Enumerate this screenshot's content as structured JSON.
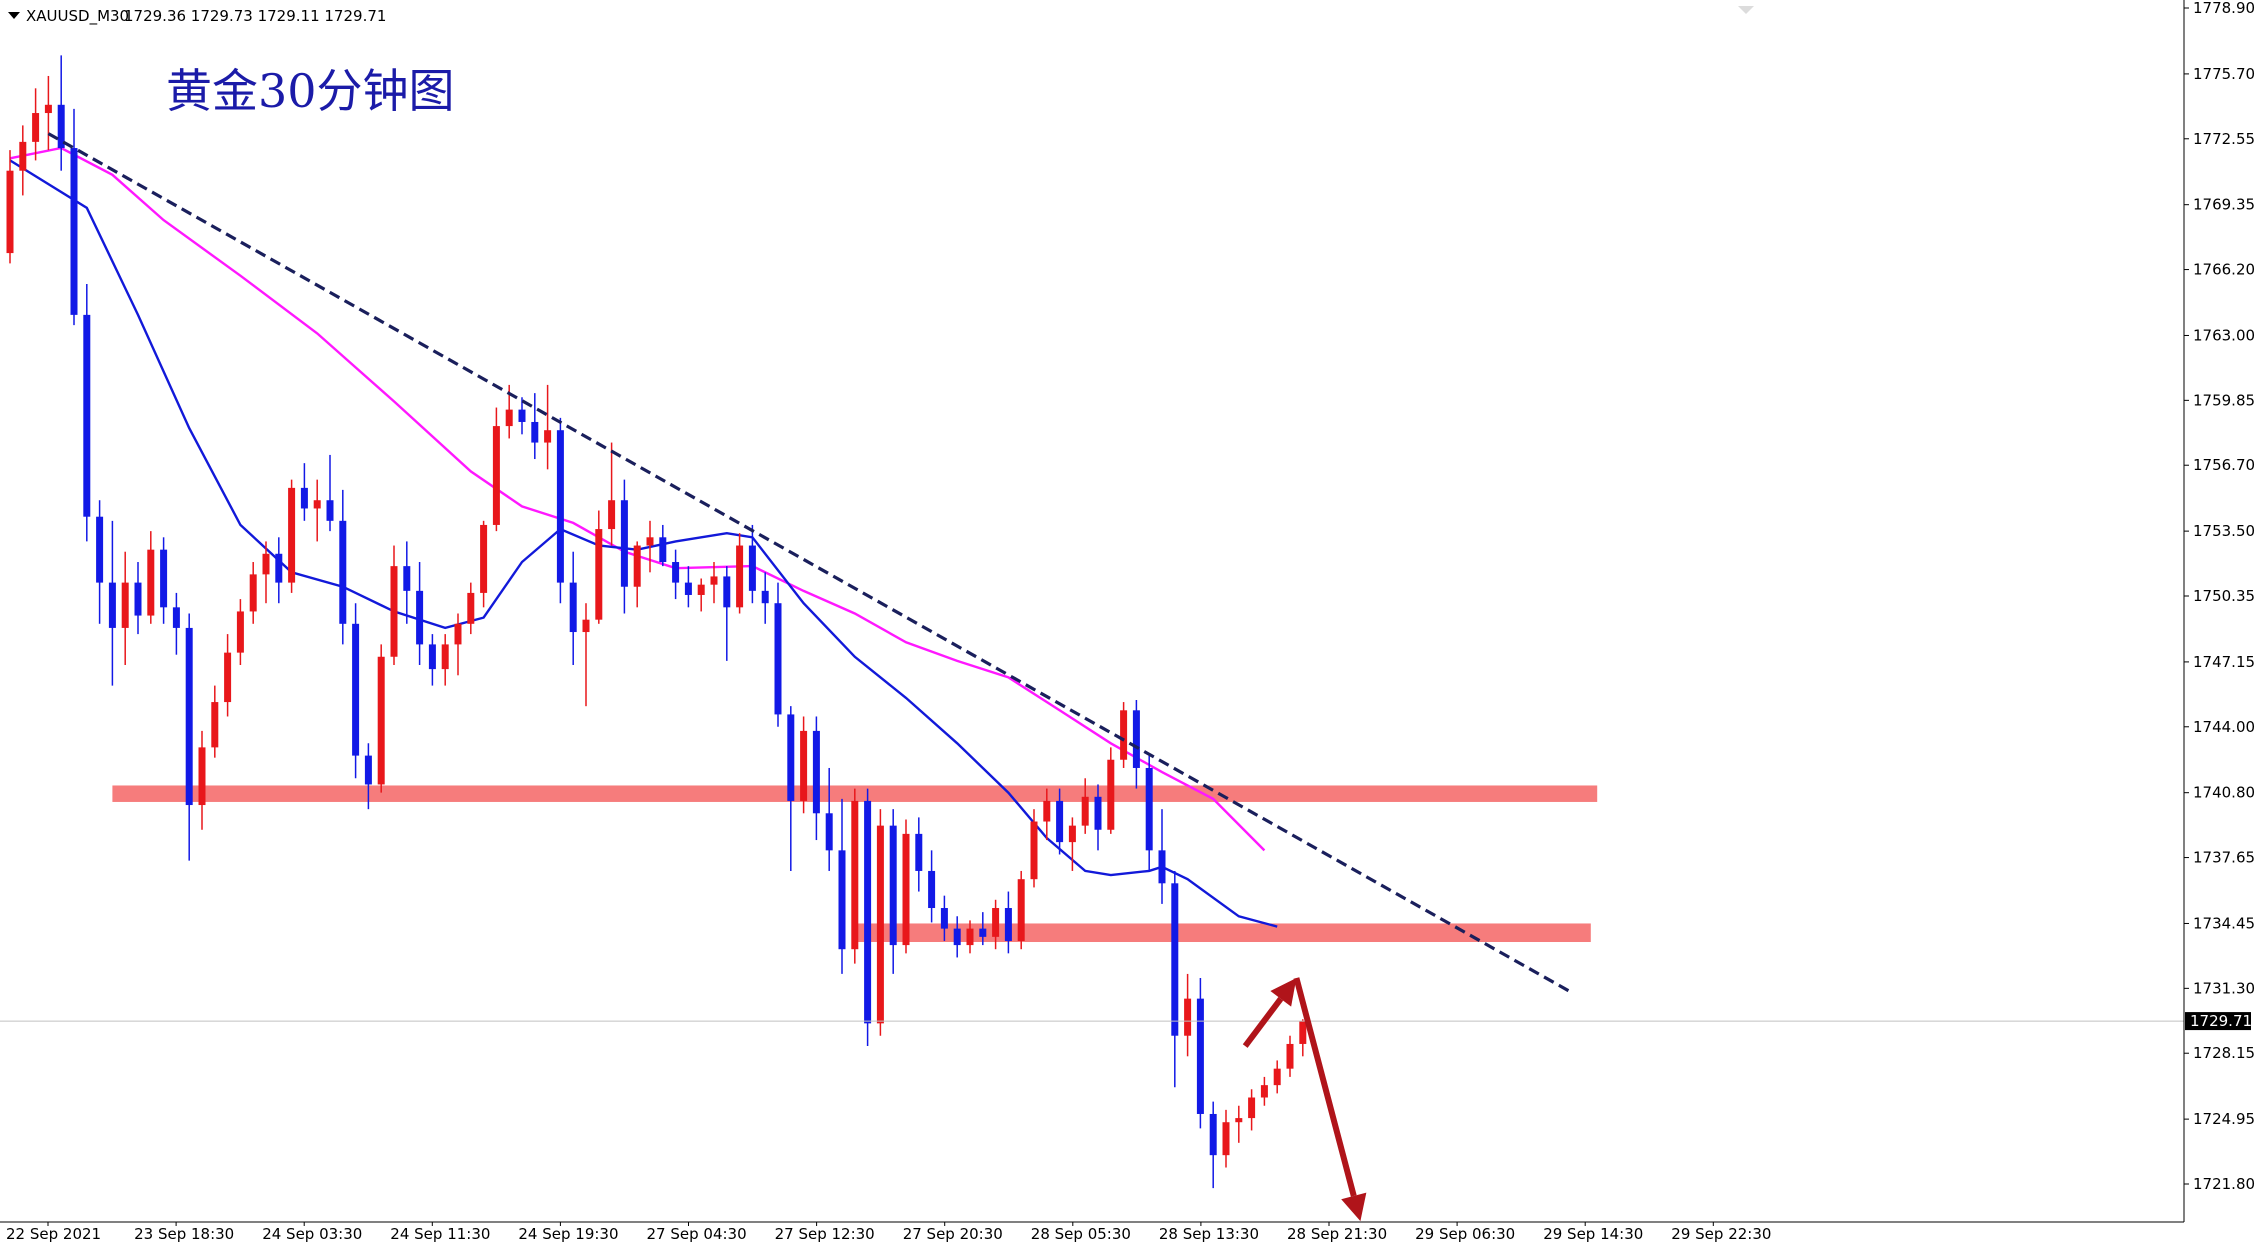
{
  "header": {
    "symbol": "XAUUSD_M30",
    "ohlc": "1729.36 1729.73 1729.11 1729.71"
  },
  "annotation_title": "黄金30分钟图",
  "colors": {
    "bull": "#e8171b",
    "bear": "#1219e6",
    "ma_fast": "#1219d9",
    "ma_slow": "#ff18ff",
    "trend": "#1a1f5c",
    "zone": "#f56565",
    "arrow": "#b0141a"
  },
  "chart_data": {
    "type": "candlestick",
    "title": "黄金30分钟图",
    "symbol": "XAUUSD_M30",
    "ylim": [
      1720.2,
      1780.4
    ],
    "y_ticks": [
      "1778.90",
      "1775.70",
      "1772.55",
      "1769.35",
      "1766.20",
      "1763.00",
      "1759.85",
      "1756.70",
      "1753.50",
      "1750.35",
      "1747.15",
      "1744.00",
      "1740.80",
      "1737.65",
      "1734.45",
      "1731.30",
      "1728.15",
      "1724.95",
      "1721.80"
    ],
    "x_ticks": [
      "22 Sep 2021",
      "23 Sep 18:30",
      "24 Sep 03:30",
      "24 Sep 11:30",
      "24 Sep 19:30",
      "27 Sep 04:30",
      "27 Sep 12:30",
      "27 Sep 20:30",
      "28 Sep 05:30",
      "28 Sep 13:30",
      "28 Sep 21:30",
      "29 Sep 06:30",
      "29 Sep 14:30",
      "29 Sep 22:30"
    ],
    "current_price": "1729.71",
    "candles": [
      {
        "o": 1767.0,
        "h": 1772.0,
        "l": 1766.5,
        "c": 1771.0
      },
      {
        "o": 1771.0,
        "h": 1773.2,
        "l": 1769.8,
        "c": 1772.4
      },
      {
        "o": 1772.4,
        "h": 1775.0,
        "l": 1771.5,
        "c": 1773.8
      },
      {
        "o": 1773.8,
        "h": 1775.6,
        "l": 1772.0,
        "c": 1774.2
      },
      {
        "o": 1774.2,
        "h": 1776.6,
        "l": 1771.0,
        "c": 1772.1
      },
      {
        "o": 1772.1,
        "h": 1774.0,
        "l": 1763.5,
        "c": 1764.0
      },
      {
        "o": 1764.0,
        "h": 1765.5,
        "l": 1753.0,
        "c": 1754.2
      },
      {
        "o": 1754.2,
        "h": 1755.0,
        "l": 1749.0,
        "c": 1751.0
      },
      {
        "o": 1751.0,
        "h": 1754.0,
        "l": 1746.0,
        "c": 1748.8
      },
      {
        "o": 1748.8,
        "h": 1752.5,
        "l": 1747.0,
        "c": 1751.0
      },
      {
        "o": 1751.0,
        "h": 1752.0,
        "l": 1748.5,
        "c": 1749.4
      },
      {
        "o": 1749.4,
        "h": 1753.5,
        "l": 1749.0,
        "c": 1752.6
      },
      {
        "o": 1752.6,
        "h": 1753.2,
        "l": 1749.0,
        "c": 1749.8
      },
      {
        "o": 1749.8,
        "h": 1750.5,
        "l": 1747.5,
        "c": 1748.8
      },
      {
        "o": 1748.8,
        "h": 1749.5,
        "l": 1737.5,
        "c": 1740.2
      },
      {
        "o": 1740.2,
        "h": 1743.8,
        "l": 1739.0,
        "c": 1743.0
      },
      {
        "o": 1743.0,
        "h": 1746.0,
        "l": 1742.5,
        "c": 1745.2
      },
      {
        "o": 1745.2,
        "h": 1748.5,
        "l": 1744.5,
        "c": 1747.6
      },
      {
        "o": 1747.6,
        "h": 1750.2,
        "l": 1747.0,
        "c": 1749.6
      },
      {
        "o": 1749.6,
        "h": 1752.0,
        "l": 1749.0,
        "c": 1751.4
      },
      {
        "o": 1751.4,
        "h": 1753.0,
        "l": 1750.0,
        "c": 1752.4
      },
      {
        "o": 1752.4,
        "h": 1753.2,
        "l": 1750.0,
        "c": 1751.0
      },
      {
        "o": 1751.0,
        "h": 1756.0,
        "l": 1750.5,
        "c": 1755.6
      },
      {
        "o": 1755.6,
        "h": 1756.8,
        "l": 1754.0,
        "c": 1754.6
      },
      {
        "o": 1754.6,
        "h": 1756.0,
        "l": 1753.0,
        "c": 1755.0
      },
      {
        "o": 1755.0,
        "h": 1757.2,
        "l": 1753.5,
        "c": 1754.0
      },
      {
        "o": 1754.0,
        "h": 1755.5,
        "l": 1748.0,
        "c": 1749.0
      },
      {
        "o": 1749.0,
        "h": 1750.0,
        "l": 1741.5,
        "c": 1742.6
      },
      {
        "o": 1742.6,
        "h": 1743.2,
        "l": 1740.0,
        "c": 1741.2
      },
      {
        "o": 1741.2,
        "h": 1748.0,
        "l": 1740.8,
        "c": 1747.4
      },
      {
        "o": 1747.4,
        "h": 1752.8,
        "l": 1747.0,
        "c": 1751.8
      },
      {
        "o": 1751.8,
        "h": 1753.0,
        "l": 1749.0,
        "c": 1750.6
      },
      {
        "o": 1750.6,
        "h": 1752.0,
        "l": 1747.0,
        "c": 1748.0
      },
      {
        "o": 1748.0,
        "h": 1748.5,
        "l": 1746.0,
        "c": 1746.8
      },
      {
        "o": 1746.8,
        "h": 1748.5,
        "l": 1746.0,
        "c": 1748.0
      },
      {
        "o": 1748.0,
        "h": 1749.5,
        "l": 1746.5,
        "c": 1749.0
      },
      {
        "o": 1749.0,
        "h": 1751.0,
        "l": 1748.5,
        "c": 1750.5
      },
      {
        "o": 1750.5,
        "h": 1754.0,
        "l": 1749.8,
        "c": 1753.8
      },
      {
        "o": 1753.8,
        "h": 1759.5,
        "l": 1753.5,
        "c": 1758.6
      },
      {
        "o": 1758.6,
        "h": 1760.6,
        "l": 1758.0,
        "c": 1759.4
      },
      {
        "o": 1759.4,
        "h": 1760.0,
        "l": 1758.2,
        "c": 1758.8
      },
      {
        "o": 1758.8,
        "h": 1760.2,
        "l": 1757.0,
        "c": 1757.8
      },
      {
        "o": 1757.8,
        "h": 1760.6,
        "l": 1756.5,
        "c": 1758.4
      },
      {
        "o": 1758.4,
        "h": 1759.0,
        "l": 1750.0,
        "c": 1751.0
      },
      {
        "o": 1751.0,
        "h": 1752.5,
        "l": 1747.0,
        "c": 1748.6
      },
      {
        "o": 1748.6,
        "h": 1750.0,
        "l": 1745.0,
        "c": 1749.2
      },
      {
        "o": 1749.2,
        "h": 1754.5,
        "l": 1749.0,
        "c": 1753.6
      },
      {
        "o": 1753.6,
        "h": 1757.8,
        "l": 1752.8,
        "c": 1755.0
      },
      {
        "o": 1755.0,
        "h": 1756.0,
        "l": 1749.5,
        "c": 1750.8
      },
      {
        "o": 1750.8,
        "h": 1753.0,
        "l": 1749.8,
        "c": 1752.8
      },
      {
        "o": 1752.8,
        "h": 1754.0,
        "l": 1751.5,
        "c": 1753.2
      },
      {
        "o": 1753.2,
        "h": 1753.8,
        "l": 1751.8,
        "c": 1752.0
      },
      {
        "o": 1752.0,
        "h": 1752.6,
        "l": 1750.2,
        "c": 1751.0
      },
      {
        "o": 1751.0,
        "h": 1751.8,
        "l": 1749.8,
        "c": 1750.4
      },
      {
        "o": 1750.4,
        "h": 1751.2,
        "l": 1749.6,
        "c": 1750.9
      },
      {
        "o": 1750.9,
        "h": 1752.0,
        "l": 1750.0,
        "c": 1751.3
      },
      {
        "o": 1751.3,
        "h": 1751.8,
        "l": 1747.2,
        "c": 1749.8
      },
      {
        "o": 1749.8,
        "h": 1753.4,
        "l": 1749.5,
        "c": 1752.8
      },
      {
        "o": 1752.8,
        "h": 1753.8,
        "l": 1750.0,
        "c": 1750.6
      },
      {
        "o": 1750.6,
        "h": 1751.5,
        "l": 1749.0,
        "c": 1750.0
      },
      {
        "o": 1750.0,
        "h": 1751.0,
        "l": 1744.0,
        "c": 1744.6
      },
      {
        "o": 1744.6,
        "h": 1745.0,
        "l": 1737.0,
        "c": 1740.4
      },
      {
        "o": 1740.4,
        "h": 1744.5,
        "l": 1739.8,
        "c": 1743.8
      },
      {
        "o": 1743.8,
        "h": 1744.5,
        "l": 1738.5,
        "c": 1739.8
      },
      {
        "o": 1739.8,
        "h": 1742.0,
        "l": 1737.0,
        "c": 1738.0
      },
      {
        "o": 1738.0,
        "h": 1740.5,
        "l": 1732.0,
        "c": 1733.2
      },
      {
        "o": 1733.2,
        "h": 1741.0,
        "l": 1732.5,
        "c": 1740.4
      },
      {
        "o": 1740.4,
        "h": 1741.0,
        "l": 1728.5,
        "c": 1729.6
      },
      {
        "o": 1729.6,
        "h": 1740.0,
        "l": 1729.0,
        "c": 1739.2
      },
      {
        "o": 1739.2,
        "h": 1740.0,
        "l": 1732.0,
        "c": 1733.4
      },
      {
        "o": 1733.4,
        "h": 1739.5,
        "l": 1733.0,
        "c": 1738.8
      },
      {
        "o": 1738.8,
        "h": 1739.6,
        "l": 1736.0,
        "c": 1737.0
      },
      {
        "o": 1737.0,
        "h": 1738.0,
        "l": 1734.5,
        "c": 1735.2
      },
      {
        "o": 1735.2,
        "h": 1735.8,
        "l": 1733.6,
        "c": 1734.2
      },
      {
        "o": 1734.2,
        "h": 1734.8,
        "l": 1732.8,
        "c": 1733.4
      },
      {
        "o": 1733.4,
        "h": 1734.6,
        "l": 1733.0,
        "c": 1734.2
      },
      {
        "o": 1734.2,
        "h": 1735.0,
        "l": 1733.4,
        "c": 1733.8
      },
      {
        "o": 1733.8,
        "h": 1735.6,
        "l": 1733.2,
        "c": 1735.2
      },
      {
        "o": 1735.2,
        "h": 1736.0,
        "l": 1733.0,
        "c": 1733.6
      },
      {
        "o": 1733.6,
        "h": 1737.0,
        "l": 1733.2,
        "c": 1736.6
      },
      {
        "o": 1736.6,
        "h": 1740.0,
        "l": 1736.2,
        "c": 1739.4
      },
      {
        "o": 1739.4,
        "h": 1741.0,
        "l": 1738.5,
        "c": 1740.4
      },
      {
        "o": 1740.4,
        "h": 1741.0,
        "l": 1737.8,
        "c": 1738.4
      },
      {
        "o": 1738.4,
        "h": 1739.6,
        "l": 1737.0,
        "c": 1739.2
      },
      {
        "o": 1739.2,
        "h": 1741.5,
        "l": 1738.8,
        "c": 1740.6
      },
      {
        "o": 1740.6,
        "h": 1741.2,
        "l": 1738.0,
        "c": 1739.0
      },
      {
        "o": 1739.0,
        "h": 1743.0,
        "l": 1738.8,
        "c": 1742.4
      },
      {
        "o": 1742.4,
        "h": 1745.2,
        "l": 1742.0,
        "c": 1744.8
      },
      {
        "o": 1744.8,
        "h": 1745.3,
        "l": 1741.0,
        "c": 1742.0
      },
      {
        "o": 1742.0,
        "h": 1742.6,
        "l": 1737.0,
        "c": 1738.0
      },
      {
        "o": 1738.0,
        "h": 1740.0,
        "l": 1735.4,
        "c": 1736.4
      },
      {
        "o": 1736.4,
        "h": 1737.0,
        "l": 1726.5,
        "c": 1729.0
      },
      {
        "o": 1729.0,
        "h": 1732.0,
        "l": 1728.0,
        "c": 1730.8
      },
      {
        "o": 1730.8,
        "h": 1731.8,
        "l": 1724.5,
        "c": 1725.2
      },
      {
        "o": 1725.2,
        "h": 1725.8,
        "l": 1721.6,
        "c": 1723.2
      },
      {
        "o": 1723.2,
        "h": 1725.4,
        "l": 1722.6,
        "c": 1724.8
      },
      {
        "o": 1724.8,
        "h": 1725.6,
        "l": 1723.8,
        "c": 1725.0
      },
      {
        "o": 1725.0,
        "h": 1726.4,
        "l": 1724.4,
        "c": 1726.0
      },
      {
        "o": 1726.0,
        "h": 1727.0,
        "l": 1725.6,
        "c": 1726.6
      },
      {
        "o": 1726.6,
        "h": 1727.8,
        "l": 1726.2,
        "c": 1727.4
      },
      {
        "o": 1727.4,
        "h": 1729.0,
        "l": 1727.0,
        "c": 1728.6
      },
      {
        "o": 1728.6,
        "h": 1729.8,
        "l": 1728.0,
        "c": 1729.71
      }
    ],
    "ma_fast": [
      [
        0,
        1771.5
      ],
      [
        6,
        1769.2
      ],
      [
        10,
        1764.0
      ],
      [
        14,
        1758.5
      ],
      [
        18,
        1753.8
      ],
      [
        22,
        1751.5
      ],
      [
        26,
        1750.8
      ],
      [
        30,
        1749.6
      ],
      [
        34,
        1748.8
      ],
      [
        37,
        1749.3
      ],
      [
        40,
        1752.0
      ],
      [
        43,
        1753.6
      ],
      [
        46,
        1752.8
      ],
      [
        49,
        1752.6
      ],
      [
        52,
        1753.0
      ],
      [
        56,
        1753.4
      ],
      [
        58,
        1753.2
      ],
      [
        62,
        1750.0
      ],
      [
        66,
        1747.4
      ],
      [
        70,
        1745.4
      ],
      [
        74,
        1743.2
      ],
      [
        78,
        1740.8
      ],
      [
        81,
        1738.6
      ],
      [
        84,
        1737.0
      ],
      [
        86,
        1736.8
      ],
      [
        89,
        1737.0
      ],
      [
        90,
        1737.2
      ],
      [
        92,
        1736.6
      ],
      [
        96,
        1734.8
      ],
      [
        99,
        1734.3
      ]
    ],
    "ma_slow": [
      [
        0,
        1771.6
      ],
      [
        4,
        1772.1
      ],
      [
        8,
        1770.8
      ],
      [
        12,
        1768.6
      ],
      [
        18,
        1765.9
      ],
      [
        24,
        1763.1
      ],
      [
        30,
        1759.8
      ],
      [
        36,
        1756.4
      ],
      [
        40,
        1754.7
      ],
      [
        44,
        1753.9
      ],
      [
        48,
        1752.5
      ],
      [
        52,
        1751.7
      ],
      [
        58,
        1751.8
      ],
      [
        62,
        1750.6
      ],
      [
        66,
        1749.5
      ],
      [
        70,
        1748.1
      ],
      [
        74,
        1747.2
      ],
      [
        78,
        1746.4
      ],
      [
        82,
        1744.8
      ],
      [
        86,
        1743.2
      ],
      [
        90,
        1741.8
      ],
      [
        94,
        1740.5
      ],
      [
        98,
        1738.0
      ]
    ],
    "trendline": {
      "from": [
        3,
        1772.8
      ],
      "to": [
        122,
        1731.1
      ]
    },
    "zones": [
      {
        "from_index": 8,
        "to_index": 124,
        "low": 1740.35,
        "high": 1741.15
      },
      {
        "from_index": 66,
        "to_index": 123.5,
        "low": 1733.55,
        "high": 1734.45
      }
    ],
    "arrows": [
      {
        "from": [
          96.5,
          1728.5
        ],
        "to": [
          100.5,
          1731.8
        ]
      },
      {
        "from": [
          100.5,
          1731.8
        ],
        "to": [
          105.5,
          1720.0
        ]
      }
    ]
  }
}
